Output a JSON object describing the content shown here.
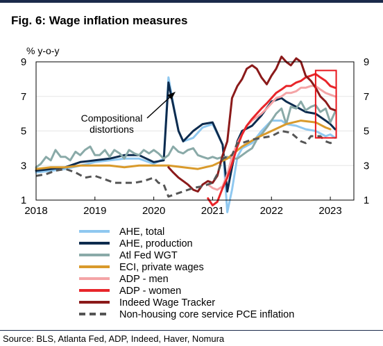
{
  "title": "Fig. 6: Wage inflation measures",
  "source": "Source: BLS, Atlanta Fed, ADP, Indeed, Haver, Nomura",
  "chart_data": {
    "type": "line",
    "y_unit_label": "% y-o-y",
    "ylim": [
      1,
      9
    ],
    "y_ticks": [
      "1",
      "3",
      "5",
      "7",
      "9"
    ],
    "xlim": [
      2018,
      2023.4
    ],
    "x_ticks": [
      "2018",
      "2019",
      "2020",
      "2021",
      "2022",
      "2023"
    ],
    "annotation": [
      "Compositional",
      "distortions"
    ],
    "highlight_box": {
      "x_from": 2022.75,
      "x_to": 2023.1,
      "y_from": 4.6,
      "y_to": 8.5,
      "color": "#e8141b"
    },
    "series": [
      {
        "name": "AHE, total",
        "color": "#8fc8f0",
        "dash": false,
        "width": 3,
        "x": [
          2018.0,
          2018.25,
          2018.5,
          2018.75,
          2019.0,
          2019.25,
          2019.5,
          2019.75,
          2020.0,
          2020.17,
          2020.25,
          2020.33,
          2020.42,
          2020.5,
          2020.67,
          2020.83,
          2021.0,
          2021.17,
          2021.25,
          2021.33,
          2021.42,
          2021.5,
          2021.67,
          2021.83,
          2022.0,
          2022.17,
          2022.25,
          2022.42,
          2022.58,
          2022.75,
          2022.92,
          2023.0,
          2023.08
        ],
        "y": [
          2.6,
          2.7,
          2.8,
          3.0,
          3.2,
          3.3,
          3.4,
          3.4,
          3.1,
          3.4,
          8.1,
          6.6,
          5.0,
          4.4,
          4.6,
          5.2,
          5.4,
          4.2,
          0.3,
          1.6,
          3.5,
          4.0,
          4.3,
          5.0,
          5.6,
          5.6,
          5.4,
          5.3,
          5.1,
          5.0,
          4.7,
          4.8,
          4.6
        ]
      },
      {
        "name": "AHE, production",
        "color": "#0d2b4e",
        "dash": false,
        "width": 3,
        "x": [
          2018.0,
          2018.25,
          2018.5,
          2018.75,
          2019.0,
          2019.25,
          2019.5,
          2019.75,
          2020.0,
          2020.17,
          2020.25,
          2020.33,
          2020.42,
          2020.5,
          2020.67,
          2020.83,
          2021.0,
          2021.17,
          2021.25,
          2021.33,
          2021.42,
          2021.5,
          2021.67,
          2021.83,
          2022.0,
          2022.17,
          2022.25,
          2022.42,
          2022.58,
          2022.75,
          2022.92,
          2023.0,
          2023.08
        ],
        "y": [
          2.7,
          2.8,
          2.9,
          3.2,
          3.3,
          3.4,
          3.6,
          3.6,
          3.2,
          3.3,
          7.8,
          6.5,
          5.0,
          4.4,
          5.0,
          5.4,
          5.5,
          4.2,
          1.5,
          2.9,
          4.4,
          5.0,
          5.3,
          5.9,
          6.7,
          6.9,
          6.7,
          6.4,
          6.1,
          6.0,
          5.6,
          5.4,
          5.1
        ]
      },
      {
        "name": "Atl Fed WGT",
        "color": "#8aaaa8",
        "dash": false,
        "width": 3,
        "x": [
          2018.0,
          2018.08,
          2018.17,
          2018.25,
          2018.33,
          2018.42,
          2018.5,
          2018.58,
          2018.67,
          2018.75,
          2018.83,
          2018.92,
          2019.0,
          2019.08,
          2019.17,
          2019.25,
          2019.33,
          2019.42,
          2019.5,
          2019.58,
          2019.67,
          2019.75,
          2019.83,
          2019.92,
          2020.0,
          2020.08,
          2020.17,
          2020.25,
          2020.33,
          2020.42,
          2020.5,
          2020.58,
          2020.67,
          2020.75,
          2020.83,
          2020.92,
          2021.0,
          2021.08,
          2021.17,
          2021.25,
          2021.33,
          2021.42,
          2021.5,
          2021.58,
          2021.67,
          2021.75,
          2021.83,
          2021.92,
          2022.0,
          2022.08,
          2022.17,
          2022.25,
          2022.33,
          2022.42,
          2022.5,
          2022.58,
          2022.67,
          2022.75,
          2022.83,
          2022.92,
          2023.0,
          2023.08
        ],
        "y": [
          2.9,
          3.1,
          3.5,
          3.3,
          3.9,
          3.5,
          3.5,
          3.3,
          3.8,
          3.6,
          3.9,
          4.1,
          3.6,
          3.6,
          3.9,
          3.5,
          3.9,
          3.7,
          3.4,
          3.9,
          3.7,
          3.6,
          3.9,
          3.7,
          3.9,
          3.7,
          3.4,
          3.6,
          4.1,
          3.8,
          3.7,
          3.9,
          4.0,
          3.6,
          3.5,
          3.4,
          3.5,
          3.4,
          3.5,
          3.5,
          3.4,
          3.4,
          3.6,
          3.8,
          4.0,
          4.5,
          4.8,
          5.2,
          5.6,
          6.0,
          6.3,
          5.4,
          6.4,
          6.3,
          6.7,
          6.2,
          6.4,
          6.5,
          6.1,
          6.3,
          5.5,
          6.1
        ]
      },
      {
        "name": "ECI, private wages",
        "color": "#d99a2b",
        "dash": false,
        "width": 3,
        "x": [
          2018.0,
          2018.25,
          2018.5,
          2018.75,
          2019.0,
          2019.25,
          2019.5,
          2019.75,
          2020.0,
          2020.25,
          2020.5,
          2020.75,
          2021.0,
          2021.25,
          2021.5,
          2021.75,
          2022.0,
          2022.25,
          2022.5,
          2022.75,
          2022.92,
          2023.0
        ],
        "y": [
          2.8,
          2.9,
          2.9,
          3.0,
          3.0,
          3.0,
          2.9,
          3.0,
          3.0,
          3.0,
          2.9,
          2.8,
          3.0,
          3.4,
          4.1,
          4.6,
          5.0,
          5.4,
          5.6,
          5.5,
          5.2,
          5.1
        ]
      },
      {
        "name": "ADP - men",
        "color": "#f4a4a6",
        "dash": false,
        "width": 3,
        "x": [
          2020.92,
          2021.0,
          2021.08,
          2021.17,
          2021.25,
          2021.33,
          2021.42,
          2021.5,
          2021.58,
          2021.67,
          2021.75,
          2021.83,
          2021.92,
          2022.0,
          2022.08,
          2022.17,
          2022.25,
          2022.33,
          2022.42,
          2022.5,
          2022.58,
          2022.67,
          2022.75,
          2022.83,
          2022.92,
          2023.0,
          2023.08
        ],
        "y": [
          1.9,
          1.7,
          1.6,
          1.8,
          2.5,
          3.5,
          4.3,
          4.8,
          5.3,
          5.6,
          5.8,
          6.0,
          6.3,
          6.6,
          6.9,
          7.0,
          7.2,
          7.2,
          7.3,
          7.5,
          7.5,
          7.6,
          7.6,
          7.4,
          7.2,
          7.1,
          7.0
        ]
      },
      {
        "name": "ADP - women",
        "color": "#e8252a",
        "dash": false,
        "width": 3,
        "x": [
          2020.92,
          2021.0,
          2021.08,
          2021.17,
          2021.25,
          2021.33,
          2021.42,
          2021.5,
          2021.58,
          2021.67,
          2021.75,
          2021.83,
          2021.92,
          2022.0,
          2022.08,
          2022.17,
          2022.25,
          2022.33,
          2022.42,
          2022.5,
          2022.58,
          2022.67,
          2022.75,
          2022.83,
          2022.92,
          2023.0,
          2023.08
        ],
        "y": [
          1.1,
          0.7,
          0.9,
          1.7,
          2.3,
          3.1,
          4.1,
          4.8,
          5.3,
          5.7,
          6.0,
          6.3,
          6.6,
          6.9,
          7.2,
          7.4,
          7.6,
          7.6,
          7.8,
          7.9,
          8.1,
          8.2,
          8.3,
          8.1,
          7.9,
          7.6,
          7.5
        ]
      },
      {
        "name": "Indeed Wage Tracker",
        "color": "#8b1a1a",
        "dash": false,
        "width": 3,
        "x": [
          2020.25,
          2020.33,
          2020.42,
          2020.5,
          2020.58,
          2020.67,
          2020.75,
          2020.83,
          2020.92,
          2021.0,
          2021.08,
          2021.17,
          2021.25,
          2021.33,
          2021.42,
          2021.5,
          2021.58,
          2021.67,
          2021.75,
          2021.83,
          2021.92,
          2022.0,
          2022.08,
          2022.17,
          2022.25,
          2022.33,
          2022.42,
          2022.5,
          2022.58,
          2022.67,
          2022.75,
          2022.83,
          2022.92,
          2023.0,
          2023.08
        ],
        "y": [
          2.9,
          2.6,
          2.3,
          2.1,
          1.9,
          1.6,
          1.5,
          1.9,
          2.1,
          2.0,
          2.4,
          3.6,
          4.4,
          6.9,
          7.6,
          8.0,
          8.6,
          8.8,
          8.6,
          8.1,
          7.7,
          8.2,
          8.6,
          9.3,
          9.0,
          8.8,
          9.2,
          9.0,
          8.2,
          7.9,
          7.5,
          7.0,
          6.7,
          6.3,
          6.2
        ]
      },
      {
        "name": "Non-housing core service PCE inflation",
        "color": "#555555",
        "dash": true,
        "width": 3,
        "x": [
          2018.0,
          2018.17,
          2018.33,
          2018.5,
          2018.67,
          2018.83,
          2019.0,
          2019.17,
          2019.33,
          2019.5,
          2019.67,
          2019.83,
          2020.0,
          2020.08,
          2020.17,
          2020.25,
          2020.33,
          2020.5,
          2020.67,
          2020.83,
          2021.0,
          2021.08,
          2021.17,
          2021.25,
          2021.33,
          2021.42,
          2021.5,
          2021.67,
          2021.83,
          2022.0,
          2022.17,
          2022.33,
          2022.5,
          2022.58,
          2022.67,
          2022.83,
          2022.92,
          2023.0,
          2023.08
        ],
        "y": [
          2.4,
          2.5,
          2.7,
          2.8,
          2.6,
          2.3,
          2.4,
          2.2,
          2.0,
          2.0,
          2.0,
          2.1,
          2.3,
          2.0,
          1.9,
          1.2,
          1.3,
          1.5,
          1.7,
          1.8,
          2.0,
          2.5,
          3.4,
          3.5,
          3.6,
          4.3,
          4.3,
          4.5,
          4.6,
          4.7,
          5.0,
          4.9,
          4.4,
          4.3,
          4.7,
          4.7,
          4.4,
          4.3,
          4.4
        ]
      }
    ],
    "legend_placement": "bottom"
  }
}
